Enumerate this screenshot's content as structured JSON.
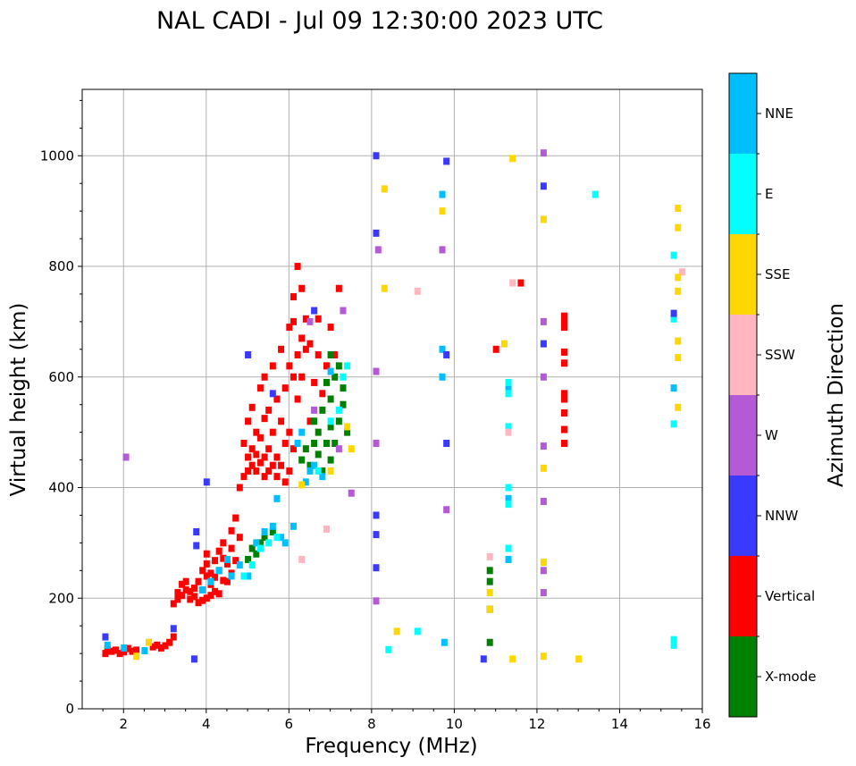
{
  "chart_data": {
    "type": "scatter",
    "title": "NAL CADI - Jul 09 12:30:00 2023 UTC",
    "xlabel": "Frequency (MHz)",
    "ylabel": "Virtual height (km)",
    "xlim": [
      1,
      16
    ],
    "ylim": [
      0,
      1120
    ],
    "xticks": [
      2,
      4,
      6,
      8,
      10,
      12,
      14,
      16
    ],
    "yticks": [
      0,
      200,
      400,
      600,
      800,
      1000
    ],
    "grid": true,
    "colorbar": {
      "label": "Azimuth Direction",
      "categories": [
        {
          "name": "X-mode",
          "color": "#008000"
        },
        {
          "name": "Vertical",
          "color": "#ff0000"
        },
        {
          "name": "NNW",
          "color": "#3a3aff"
        },
        {
          "name": "W",
          "color": "#b45ad6"
        },
        {
          "name": "SSW",
          "color": "#ffb6c1"
        },
        {
          "name": "SSE",
          "color": "#ffd700"
        },
        {
          "name": "E",
          "color": "#00ffff"
        },
        {
          "name": "NNE",
          "color": "#00bfff"
        }
      ]
    },
    "series": [
      {
        "name": "Vertical",
        "points": [
          [
            1.55,
            100
          ],
          [
            1.6,
            108
          ],
          [
            1.7,
            104
          ],
          [
            1.8,
            106
          ],
          [
            1.9,
            100
          ],
          [
            2.0,
            103
          ],
          [
            2.1,
            109
          ],
          [
            2.2,
            104
          ],
          [
            2.3,
            106
          ],
          [
            2.7,
            112
          ],
          [
            2.8,
            115
          ],
          [
            2.9,
            110
          ],
          [
            3.0,
            114
          ],
          [
            3.1,
            120
          ],
          [
            3.2,
            130
          ],
          [
            3.2,
            190
          ],
          [
            3.3,
            198
          ],
          [
            3.3,
            210
          ],
          [
            3.4,
            205
          ],
          [
            3.4,
            225
          ],
          [
            3.5,
            215
          ],
          [
            3.5,
            230
          ],
          [
            3.6,
            198
          ],
          [
            3.6,
            212
          ],
          [
            3.7,
            218
          ],
          [
            3.7,
            203
          ],
          [
            3.8,
            192
          ],
          [
            3.8,
            230
          ],
          [
            3.9,
            196
          ],
          [
            3.9,
            215
          ],
          [
            3.9,
            250
          ],
          [
            4.0,
            200
          ],
          [
            4.0,
            240
          ],
          [
            4.0,
            262
          ],
          [
            4.0,
            280
          ],
          [
            4.1,
            205
          ],
          [
            4.1,
            225
          ],
          [
            4.1,
            245
          ],
          [
            4.2,
            212
          ],
          [
            4.2,
            238
          ],
          [
            4.2,
            268
          ],
          [
            4.3,
            208
          ],
          [
            4.3,
            250
          ],
          [
            4.3,
            285
          ],
          [
            4.4,
            232
          ],
          [
            4.4,
            272
          ],
          [
            4.4,
            300
          ],
          [
            4.5,
            230
          ],
          [
            4.5,
            262
          ],
          [
            4.6,
            245
          ],
          [
            4.6,
            290
          ],
          [
            4.6,
            322
          ],
          [
            4.7,
            268
          ],
          [
            4.7,
            345
          ],
          [
            4.8,
            310
          ],
          [
            4.8,
            400
          ],
          [
            4.9,
            420
          ],
          [
            4.9,
            480
          ],
          [
            5.0,
            430
          ],
          [
            5.0,
            455
          ],
          [
            5.0,
            520
          ],
          [
            5.1,
            440
          ],
          [
            5.1,
            470
          ],
          [
            5.1,
            545
          ],
          [
            5.2,
            430
          ],
          [
            5.2,
            460
          ],
          [
            5.2,
            500
          ],
          [
            5.3,
            445
          ],
          [
            5.3,
            490
          ],
          [
            5.3,
            580
          ],
          [
            5.4,
            420
          ],
          [
            5.4,
            455
          ],
          [
            5.4,
            525
          ],
          [
            5.4,
            600
          ],
          [
            5.5,
            430
          ],
          [
            5.5,
            470
          ],
          [
            5.5,
            540
          ],
          [
            5.6,
            440
          ],
          [
            5.6,
            500
          ],
          [
            5.6,
            620
          ],
          [
            5.7,
            420
          ],
          [
            5.7,
            455
          ],
          [
            5.7,
            560
          ],
          [
            5.8,
            440
          ],
          [
            5.8,
            520
          ],
          [
            5.8,
            650
          ],
          [
            5.9,
            410
          ],
          [
            5.9,
            480
          ],
          [
            5.9,
            580
          ],
          [
            6.0,
            430
          ],
          [
            6.0,
            500
          ],
          [
            6.0,
            620
          ],
          [
            6.0,
            690
          ],
          [
            6.1,
            470
          ],
          [
            6.1,
            600
          ],
          [
            6.1,
            700
          ],
          [
            6.1,
            745
          ],
          [
            6.2,
            560
          ],
          [
            6.2,
            640
          ],
          [
            6.2,
            800
          ],
          [
            6.3,
            600
          ],
          [
            6.3,
            670
          ],
          [
            6.3,
            760
          ],
          [
            6.4,
            650
          ],
          [
            6.4,
            705
          ],
          [
            6.5,
            520
          ],
          [
            6.5,
            660
          ],
          [
            6.6,
            590
          ],
          [
            6.7,
            640
          ],
          [
            6.7,
            705
          ],
          [
            6.8,
            570
          ],
          [
            6.9,
            620
          ],
          [
            7.0,
            690
          ],
          [
            7.1,
            640
          ],
          [
            7.2,
            760
          ],
          [
            11.0,
            650
          ],
          [
            11.6,
            770
          ],
          [
            12.65,
            480
          ],
          [
            12.65,
            505
          ],
          [
            12.65,
            535
          ],
          [
            12.65,
            560
          ],
          [
            12.65,
            570
          ],
          [
            12.65,
            625
          ],
          [
            12.65,
            645
          ],
          [
            12.65,
            690
          ],
          [
            12.65,
            700
          ],
          [
            12.65,
            710
          ]
        ]
      },
      {
        "name": "X-mode",
        "points": [
          [
            5.0,
            270
          ],
          [
            5.1,
            290
          ],
          [
            5.2,
            280
          ],
          [
            5.3,
            300
          ],
          [
            5.4,
            310
          ],
          [
            5.6,
            320
          ],
          [
            6.3,
            450
          ],
          [
            6.4,
            470
          ],
          [
            6.5,
            440
          ],
          [
            6.6,
            480
          ],
          [
            6.6,
            520
          ],
          [
            6.7,
            460
          ],
          [
            6.7,
            500
          ],
          [
            6.8,
            430
          ],
          [
            6.8,
            540
          ],
          [
            6.9,
            480
          ],
          [
            6.9,
            590
          ],
          [
            7.0,
            450
          ],
          [
            7.0,
            510
          ],
          [
            7.0,
            560
          ],
          [
            7.0,
            640
          ],
          [
            7.1,
            480
          ],
          [
            7.1,
            600
          ],
          [
            7.2,
            520
          ],
          [
            7.2,
            620
          ],
          [
            7.3,
            550
          ],
          [
            7.3,
            580
          ],
          [
            7.4,
            500
          ],
          [
            10.85,
            120
          ],
          [
            10.85,
            180
          ],
          [
            10.85,
            230
          ],
          [
            10.85,
            250
          ]
        ]
      },
      {
        "name": "NNE",
        "points": [
          [
            1.6,
            115
          ],
          [
            2.0,
            110
          ],
          [
            2.5,
            105
          ],
          [
            3.9,
            215
          ],
          [
            4.1,
            230
          ],
          [
            4.3,
            250
          ],
          [
            4.5,
            270
          ],
          [
            4.6,
            240
          ],
          [
            4.8,
            260
          ],
          [
            5.0,
            240
          ],
          [
            5.2,
            300
          ],
          [
            5.4,
            320
          ],
          [
            5.6,
            330
          ],
          [
            5.7,
            380
          ],
          [
            5.8,
            310
          ],
          [
            5.9,
            300
          ],
          [
            6.1,
            330
          ],
          [
            6.2,
            480
          ],
          [
            6.3,
            500
          ],
          [
            6.4,
            410
          ],
          [
            6.5,
            430
          ],
          [
            6.6,
            440
          ],
          [
            6.8,
            420
          ],
          [
            7.0,
            610
          ],
          [
            9.7,
            650
          ],
          [
            9.7,
            600
          ],
          [
            9.7,
            930
          ],
          [
            9.75,
            120
          ],
          [
            11.3,
            270
          ],
          [
            11.3,
            380
          ],
          [
            11.3,
            580
          ],
          [
            15.3,
            580
          ]
        ]
      },
      {
        "name": "E",
        "points": [
          [
            4.9,
            240
          ],
          [
            5.1,
            260
          ],
          [
            5.3,
            290
          ],
          [
            5.5,
            300
          ],
          [
            5.7,
            310
          ],
          [
            6.7,
            430
          ],
          [
            7.0,
            520
          ],
          [
            7.2,
            540
          ],
          [
            7.3,
            600
          ],
          [
            7.4,
            620
          ],
          [
            8.4,
            107
          ],
          [
            9.1,
            140
          ],
          [
            11.3,
            290
          ],
          [
            11.3,
            370
          ],
          [
            11.3,
            400
          ],
          [
            11.3,
            510
          ],
          [
            11.3,
            570
          ],
          [
            11.3,
            590
          ],
          [
            13.4,
            930
          ],
          [
            15.3,
            115
          ],
          [
            15.3,
            125
          ],
          [
            15.3,
            515
          ],
          [
            15.3,
            705
          ],
          [
            15.3,
            820
          ]
        ]
      },
      {
        "name": "NNW",
        "points": [
          [
            1.55,
            130
          ],
          [
            3.2,
            145
          ],
          [
            3.7,
            90
          ],
          [
            3.75,
            295
          ],
          [
            3.75,
            320
          ],
          [
            4.0,
            410
          ],
          [
            5.0,
            640
          ],
          [
            5.6,
            570
          ],
          [
            6.6,
            720
          ],
          [
            8.1,
            255
          ],
          [
            8.1,
            315
          ],
          [
            8.1,
            350
          ],
          [
            8.1,
            860
          ],
          [
            8.1,
            1000
          ],
          [
            9.8,
            640
          ],
          [
            9.8,
            480
          ],
          [
            9.8,
            990
          ],
          [
            10.7,
            90
          ],
          [
            12.15,
            945
          ],
          [
            12.15,
            660
          ],
          [
            15.3,
            715
          ]
        ]
      },
      {
        "name": "W",
        "points": [
          [
            2.05,
            455
          ],
          [
            6.5,
            700
          ],
          [
            6.6,
            540
          ],
          [
            7.2,
            470
          ],
          [
            7.3,
            720
          ],
          [
            7.5,
            390
          ],
          [
            8.1,
            195
          ],
          [
            8.1,
            480
          ],
          [
            8.1,
            610
          ],
          [
            8.15,
            830
          ],
          [
            9.7,
            830
          ],
          [
            9.8,
            360
          ],
          [
            12.15,
            210
          ],
          [
            12.15,
            250
          ],
          [
            12.15,
            375
          ],
          [
            12.15,
            475
          ],
          [
            12.15,
            600
          ],
          [
            12.15,
            700
          ],
          [
            12.15,
            1005
          ]
        ]
      },
      {
        "name": "SSW",
        "points": [
          [
            6.3,
            270
          ],
          [
            6.9,
            325
          ],
          [
            9.1,
            755
          ],
          [
            10.85,
            275
          ],
          [
            11.3,
            500
          ],
          [
            11.4,
            770
          ],
          [
            15.5,
            790
          ]
        ]
      },
      {
        "name": "SSE",
        "points": [
          [
            2.3,
            95
          ],
          [
            2.6,
            120
          ],
          [
            6.3,
            405
          ],
          [
            7.0,
            430
          ],
          [
            7.4,
            510
          ],
          [
            7.5,
            470
          ],
          [
            8.3,
            760
          ],
          [
            8.3,
            940
          ],
          [
            8.6,
            140
          ],
          [
            9.7,
            900
          ],
          [
            10.85,
            210
          ],
          [
            10.85,
            180
          ],
          [
            11.2,
            660
          ],
          [
            11.4,
            90
          ],
          [
            11.4,
            995
          ],
          [
            12.15,
            95
          ],
          [
            12.15,
            265
          ],
          [
            12.15,
            435
          ],
          [
            12.15,
            885
          ],
          [
            13.0,
            90
          ],
          [
            15.4,
            545
          ],
          [
            15.4,
            635
          ],
          [
            15.4,
            665
          ],
          [
            15.4,
            755
          ],
          [
            15.4,
            780
          ],
          [
            15.4,
            870
          ],
          [
            15.4,
            905
          ]
        ]
      }
    ]
  }
}
